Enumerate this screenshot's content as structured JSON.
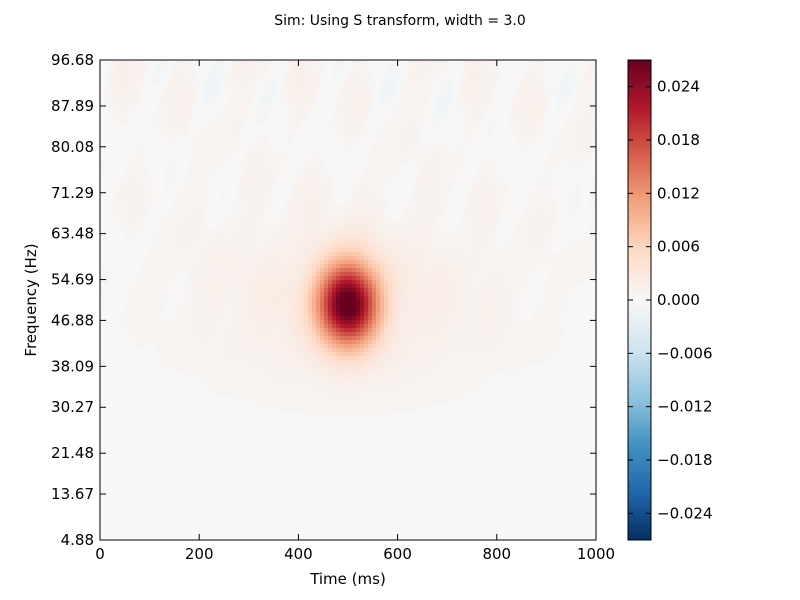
{
  "chart_data": {
    "type": "heatmap",
    "title": "Sim: Using S transform, width = 3.0",
    "xlabel": "Time (ms)",
    "ylabel": "Frequency (Hz)",
    "xlim": [
      0,
      1000
    ],
    "ylim": [
      4.88,
      96.68
    ],
    "x_ticks": [
      "0",
      "200",
      "400",
      "600",
      "800",
      "1000"
    ],
    "y_ticks": [
      "4.88",
      "13.67",
      "21.48",
      "30.27",
      "38.09",
      "46.88",
      "54.69",
      "63.48",
      "71.29",
      "80.08",
      "87.89",
      "96.68"
    ],
    "colormap": "RdBu_r",
    "value_range": [
      -0.027,
      0.027
    ],
    "colorbar_ticks": [
      "0.024",
      "0.018",
      "0.012",
      "0.006",
      "0.000",
      "−0.006",
      "−0.012",
      "−0.018",
      "−0.024"
    ],
    "peak": {
      "time_ms": 500,
      "frequency_hz": 50,
      "value": 0.027
    }
  },
  "colors": {
    "colormap_stops": [
      "#053061",
      "#2166ac",
      "#4393c3",
      "#92c5de",
      "#d1e5f0",
      "#f7f7f7",
      "#fddbc7",
      "#f4a582",
      "#d6604d",
      "#b2182b",
      "#67001f"
    ]
  }
}
